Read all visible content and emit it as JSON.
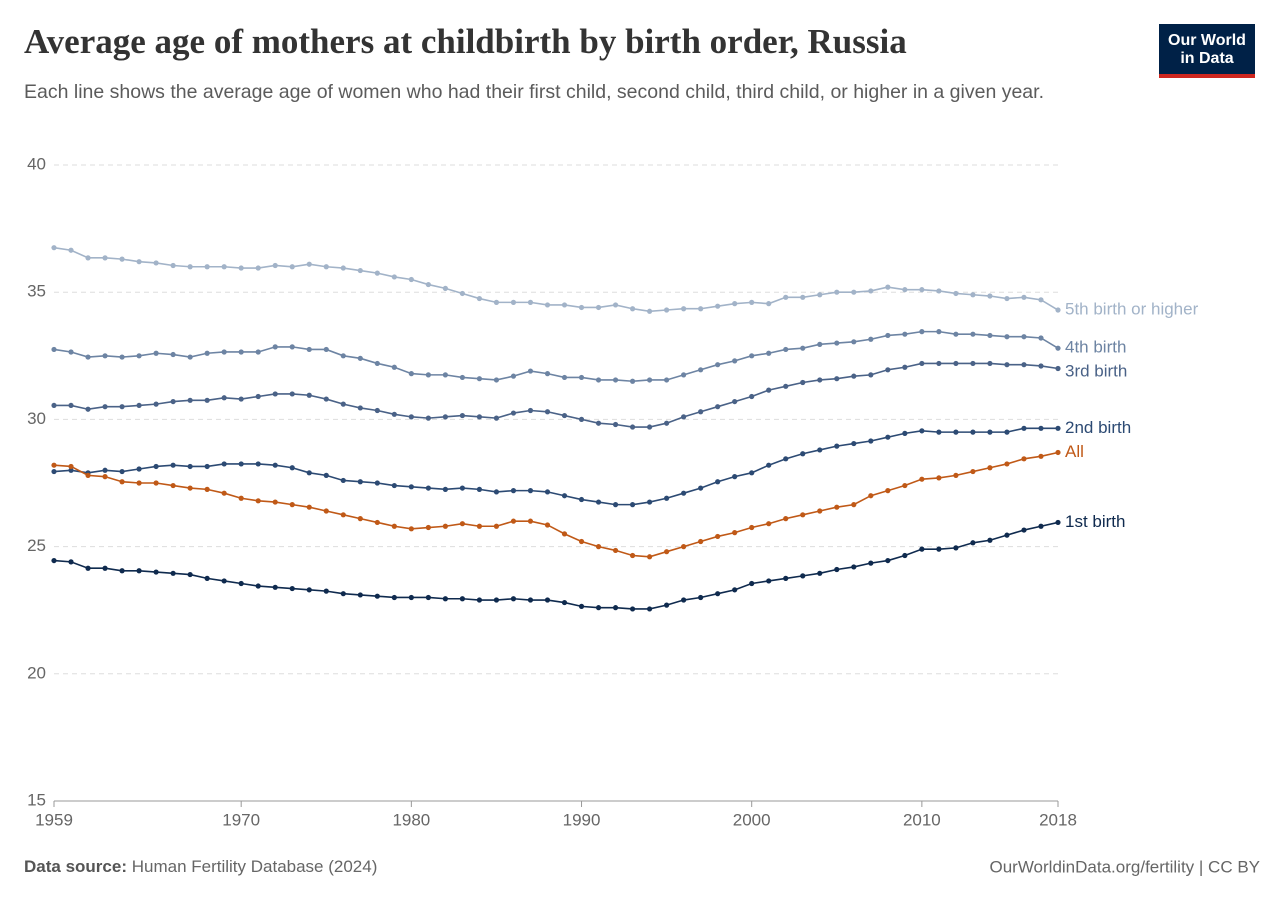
{
  "chart_data": {
    "type": "line",
    "title": "Average age of mothers at childbirth by birth order, Russia",
    "subtitle": "Each line shows the average age of women who had their first child, second child, third child, or higher in a given year.",
    "x": [
      1959,
      1960,
      1961,
      1962,
      1963,
      1964,
      1965,
      1966,
      1967,
      1968,
      1969,
      1970,
      1971,
      1972,
      1973,
      1974,
      1975,
      1976,
      1977,
      1978,
      1979,
      1980,
      1981,
      1982,
      1983,
      1984,
      1985,
      1986,
      1987,
      1988,
      1989,
      1990,
      1991,
      1992,
      1993,
      1994,
      1995,
      1996,
      1997,
      1998,
      1999,
      2000,
      2001,
      2002,
      2003,
      2004,
      2005,
      2006,
      2007,
      2008,
      2009,
      2010,
      2011,
      2012,
      2013,
      2014,
      2015,
      2016,
      2017,
      2018
    ],
    "xlim": [
      1959,
      2018
    ],
    "xticks": [
      1959,
      1970,
      1980,
      1990,
      2000,
      2010,
      2018
    ],
    "ylim": [
      15,
      40
    ],
    "yticks": [
      15,
      20,
      25,
      30,
      35,
      40
    ],
    "grid": true,
    "series": [
      {
        "name": "5th birth or higher",
        "color": "#a2b3c8",
        "values": [
          36.75,
          36.65,
          36.35,
          36.35,
          36.3,
          36.2,
          36.15,
          36.05,
          36.0,
          36.0,
          36.0,
          35.95,
          35.95,
          36.05,
          36.0,
          36.1,
          36.0,
          35.95,
          35.85,
          35.75,
          35.6,
          35.5,
          35.3,
          35.15,
          34.95,
          34.75,
          34.6,
          34.6,
          34.6,
          34.5,
          34.5,
          34.4,
          34.4,
          34.5,
          34.35,
          34.25,
          34.3,
          34.35,
          34.35,
          34.45,
          34.55,
          34.6,
          34.55,
          34.8,
          34.8,
          34.9,
          35.0,
          35.0,
          35.05,
          35.2,
          35.1,
          35.1,
          35.05,
          34.95,
          34.9,
          34.85,
          34.75,
          34.8,
          34.7,
          34.3
        ]
      },
      {
        "name": "4th birth",
        "color": "#6d84a3",
        "values": [
          32.75,
          32.65,
          32.45,
          32.5,
          32.45,
          32.5,
          32.6,
          32.55,
          32.45,
          32.6,
          32.65,
          32.65,
          32.65,
          32.85,
          32.85,
          32.75,
          32.75,
          32.5,
          32.4,
          32.2,
          32.05,
          31.8,
          31.75,
          31.75,
          31.65,
          31.6,
          31.55,
          31.7,
          31.9,
          31.8,
          31.65,
          31.65,
          31.55,
          31.55,
          31.5,
          31.55,
          31.55,
          31.75,
          31.95,
          32.15,
          32.3,
          32.5,
          32.6,
          32.75,
          32.8,
          32.95,
          33.0,
          33.05,
          33.15,
          33.3,
          33.35,
          33.45,
          33.45,
          33.35,
          33.35,
          33.3,
          33.25,
          33.25,
          33.2,
          32.8
        ]
      },
      {
        "name": "3rd birth",
        "color": "#4a6287",
        "values": [
          30.55,
          30.55,
          30.4,
          30.5,
          30.5,
          30.55,
          30.6,
          30.7,
          30.75,
          30.75,
          30.85,
          30.8,
          30.9,
          31.0,
          31.0,
          30.95,
          30.8,
          30.6,
          30.45,
          30.35,
          30.2,
          30.1,
          30.05,
          30.1,
          30.15,
          30.1,
          30.05,
          30.25,
          30.35,
          30.3,
          30.15,
          30.0,
          29.85,
          29.8,
          29.7,
          29.7,
          29.85,
          30.1,
          30.3,
          30.5,
          30.7,
          30.9,
          31.15,
          31.3,
          31.45,
          31.55,
          31.6,
          31.7,
          31.75,
          31.95,
          32.05,
          32.2,
          32.2,
          32.2,
          32.2,
          32.2,
          32.15,
          32.15,
          32.1,
          32.0
        ]
      },
      {
        "name": "2nd birth",
        "color": "#2c4a73",
        "values": [
          27.95,
          28.0,
          27.9,
          28.0,
          27.95,
          28.05,
          28.15,
          28.2,
          28.15,
          28.15,
          28.25,
          28.25,
          28.25,
          28.2,
          28.1,
          27.9,
          27.8,
          27.6,
          27.55,
          27.5,
          27.4,
          27.35,
          27.3,
          27.25,
          27.3,
          27.25,
          27.15,
          27.2,
          27.2,
          27.15,
          27.0,
          26.85,
          26.75,
          26.65,
          26.65,
          26.75,
          26.9,
          27.1,
          27.3,
          27.55,
          27.75,
          27.9,
          28.2,
          28.45,
          28.65,
          28.8,
          28.95,
          29.05,
          29.15,
          29.3,
          29.45,
          29.55,
          29.5,
          29.5,
          29.5,
          29.5,
          29.5,
          29.65,
          29.65,
          29.65
        ]
      },
      {
        "name": "All",
        "color": "#c05917",
        "values": [
          28.2,
          28.15,
          27.8,
          27.75,
          27.55,
          27.5,
          27.5,
          27.4,
          27.3,
          27.25,
          27.1,
          26.9,
          26.8,
          26.75,
          26.65,
          26.55,
          26.4,
          26.25,
          26.1,
          25.95,
          25.8,
          25.7,
          25.75,
          25.8,
          25.9,
          25.8,
          25.8,
          26.0,
          26.0,
          25.85,
          25.5,
          25.2,
          25.0,
          24.85,
          24.65,
          24.6,
          24.8,
          25.0,
          25.2,
          25.4,
          25.55,
          25.75,
          25.9,
          26.1,
          26.25,
          26.4,
          26.55,
          26.65,
          27.0,
          27.2,
          27.4,
          27.65,
          27.7,
          27.8,
          27.95,
          28.1,
          28.25,
          28.45,
          28.55,
          28.7
        ]
      },
      {
        "name": "1st birth",
        "color": "#0f2a4e",
        "values": [
          24.45,
          24.4,
          24.15,
          24.15,
          24.05,
          24.05,
          24.0,
          23.95,
          23.9,
          23.75,
          23.65,
          23.55,
          23.45,
          23.4,
          23.35,
          23.3,
          23.25,
          23.15,
          23.1,
          23.05,
          23.0,
          23.0,
          23.0,
          22.95,
          22.95,
          22.9,
          22.9,
          22.95,
          22.9,
          22.9,
          22.8,
          22.65,
          22.6,
          22.6,
          22.55,
          22.55,
          22.7,
          22.9,
          23.0,
          23.15,
          23.3,
          23.55,
          23.65,
          23.75,
          23.85,
          23.95,
          24.1,
          24.2,
          24.35,
          24.45,
          24.65,
          24.9,
          24.9,
          24.95,
          25.15,
          25.25,
          25.45,
          25.65,
          25.8,
          25.95
        ]
      }
    ],
    "source_label": "Data source:",
    "source": "Human Fertility Database (2024)",
    "credit": "OurWorldinData.org/fertility | CC BY",
    "logo": [
      "Our World",
      "in Data"
    ]
  }
}
